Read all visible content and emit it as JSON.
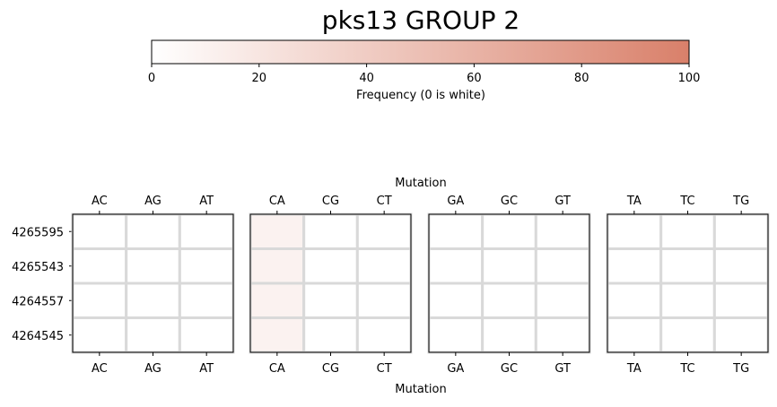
{
  "chart_data": {
    "type": "heatmap",
    "title": "pks13 GROUP 2",
    "colorbar": {
      "label": "Frequency (0 is white)",
      "range": [
        0,
        100
      ],
      "ticks": [
        0,
        20,
        40,
        60,
        80,
        100
      ],
      "color_low": "#ffffff",
      "color_high": "#d9806a"
    },
    "xlabel": "Mutation",
    "rows": [
      "4265595",
      "4265543",
      "4264557",
      "4264545"
    ],
    "groups": [
      {
        "columns": [
          "AC",
          "AG",
          "AT"
        ],
        "values": [
          [
            0,
            0,
            0
          ],
          [
            0,
            0,
            0
          ],
          [
            0,
            0,
            0
          ],
          [
            0,
            0,
            0
          ]
        ]
      },
      {
        "columns": [
          "CA",
          "CG",
          "CT"
        ],
        "values": [
          [
            10,
            0,
            0
          ],
          [
            10,
            0,
            0
          ],
          [
            10,
            0,
            0
          ],
          [
            10,
            0,
            0
          ]
        ]
      },
      {
        "columns": [
          "GA",
          "GC",
          "GT"
        ],
        "values": [
          [
            0,
            0,
            0
          ],
          [
            0,
            0,
            0
          ],
          [
            0,
            0,
            0
          ],
          [
            0,
            0,
            0
          ]
        ]
      },
      {
        "columns": [
          "TA",
          "TC",
          "TG"
        ],
        "values": [
          [
            0,
            0,
            0
          ],
          [
            0,
            0,
            0
          ],
          [
            0,
            0,
            0
          ],
          [
            0,
            0,
            0
          ]
        ]
      }
    ]
  }
}
